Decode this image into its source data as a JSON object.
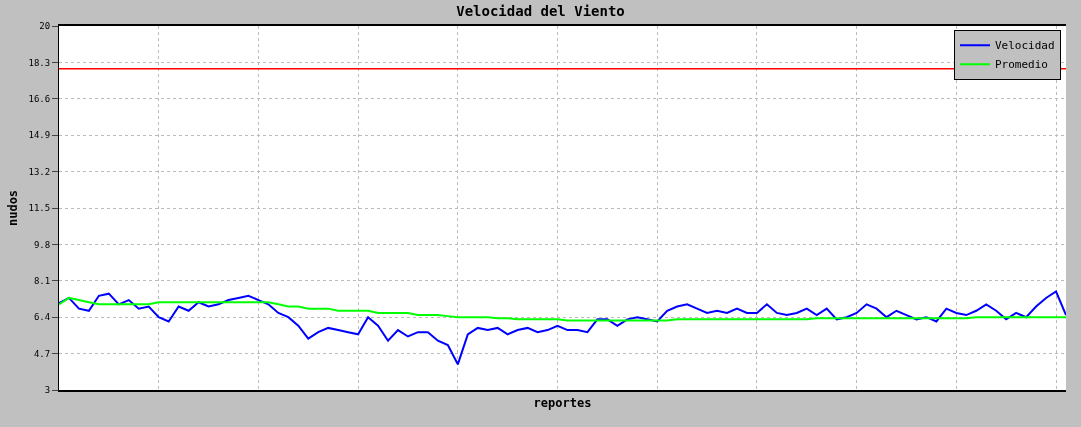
{
  "chart_data": {
    "type": "line",
    "title": "Velocidad del Viento",
    "xlabel": "reportes",
    "ylabel": "nudos",
    "categories": [
      null,
      null,
      null,
      null,
      null,
      null,
      null,
      null,
      null,
      null,
      null,
      null,
      null,
      null,
      null,
      null,
      null,
      null,
      null,
      null,
      null,
      null,
      null,
      null,
      null,
      null,
      null,
      null,
      null,
      null,
      null,
      null,
      null,
      null,
      null,
      null,
      null,
      null,
      null,
      null,
      null,
      null,
      null,
      null,
      null,
      null,
      null,
      null,
      null,
      null,
      null,
      null,
      null,
      null,
      null,
      null,
      null,
      null,
      null,
      null,
      null,
      null,
      null,
      null,
      null,
      null,
      null,
      null,
      null,
      null,
      null,
      null,
      null,
      null,
      null,
      null,
      null,
      null,
      null,
      null,
      null,
      null,
      null,
      null,
      null,
      null,
      null,
      null,
      null,
      null,
      null,
      null,
      null,
      null,
      null,
      null,
      null,
      null,
      null,
      null,
      null,
      null
    ],
    "series": [
      {
        "name": "Velocidad",
        "color": "#0000ff",
        "values": [
          7.06,
          7.3,
          6.8,
          6.7,
          7.4,
          7.5,
          7.0,
          7.2,
          6.8,
          6.9,
          6.4,
          6.2,
          6.9,
          6.7,
          7.1,
          6.9,
          7.0,
          7.2,
          7.3,
          7.4,
          7.2,
          7.0,
          6.6,
          6.4,
          6.0,
          5.4,
          5.7,
          5.9,
          5.8,
          5.7,
          5.6,
          6.4,
          6.0,
          5.3,
          5.8,
          5.5,
          5.7,
          5.7,
          5.3,
          5.1,
          4.2,
          5.6,
          5.9,
          5.8,
          5.9,
          5.6,
          5.8,
          5.9,
          5.7,
          5.8,
          6.0,
          5.8,
          5.8,
          5.7,
          6.3,
          6.3,
          6.0,
          6.3,
          6.4,
          6.3,
          6.2,
          6.7,
          6.9,
          7.0,
          6.8,
          6.6,
          6.7,
          6.6,
          6.8,
          6.6,
          6.6,
          7.0,
          6.6,
          6.5,
          6.6,
          6.8,
          6.5,
          6.8,
          6.3,
          6.4,
          6.6,
          7.0,
          6.8,
          6.4,
          6.7,
          6.5,
          6.3,
          6.4,
          6.2,
          6.8,
          6.6,
          6.5,
          6.7,
          7.0,
          6.7,
          6.3,
          6.6,
          6.4,
          6.9,
          7.3,
          7.6,
          6.5
        ]
      },
      {
        "name": "Promedio",
        "color": "#00ff00",
        "values": [
          7.0,
          7.3,
          7.2,
          7.1,
          7.0,
          7.0,
          7.0,
          7.0,
          7.0,
          7.0,
          7.1,
          7.1,
          7.1,
          7.1,
          7.1,
          7.1,
          7.1,
          7.1,
          7.1,
          7.1,
          7.1,
          7.1,
          7.0,
          6.9,
          6.9,
          6.8,
          6.8,
          6.8,
          6.7,
          6.7,
          6.7,
          6.7,
          6.6,
          6.6,
          6.6,
          6.6,
          6.5,
          6.5,
          6.5,
          6.45,
          6.4,
          6.4,
          6.4,
          6.4,
          6.35,
          6.35,
          6.3,
          6.3,
          6.3,
          6.3,
          6.3,
          6.25,
          6.25,
          6.25,
          6.25,
          6.25,
          6.25,
          6.25,
          6.25,
          6.25,
          6.25,
          6.25,
          6.3,
          6.3,
          6.3,
          6.3,
          6.3,
          6.3,
          6.3,
          6.3,
          6.3,
          6.3,
          6.3,
          6.3,
          6.3,
          6.3,
          6.35,
          6.35,
          6.35,
          6.35,
          6.35,
          6.35,
          6.35,
          6.35,
          6.35,
          6.35,
          6.35,
          6.35,
          6.35,
          6.35,
          6.35,
          6.35,
          6.4,
          6.4,
          6.4,
          6.4,
          6.4,
          6.4,
          6.4,
          6.4,
          6.4,
          6.4
        ]
      }
    ],
    "ylim": [
      3,
      20
    ],
    "yticks": [
      3,
      4.7,
      6.4,
      8.1,
      9.8,
      11.5,
      13.2,
      14.9,
      16.6,
      18.3,
      20
    ],
    "ref_lines": [
      {
        "axis": "y",
        "value": 18.0,
        "color": "#ff0000"
      }
    ],
    "grid": true,
    "legend": "top right",
    "tick_labels": "y"
  }
}
